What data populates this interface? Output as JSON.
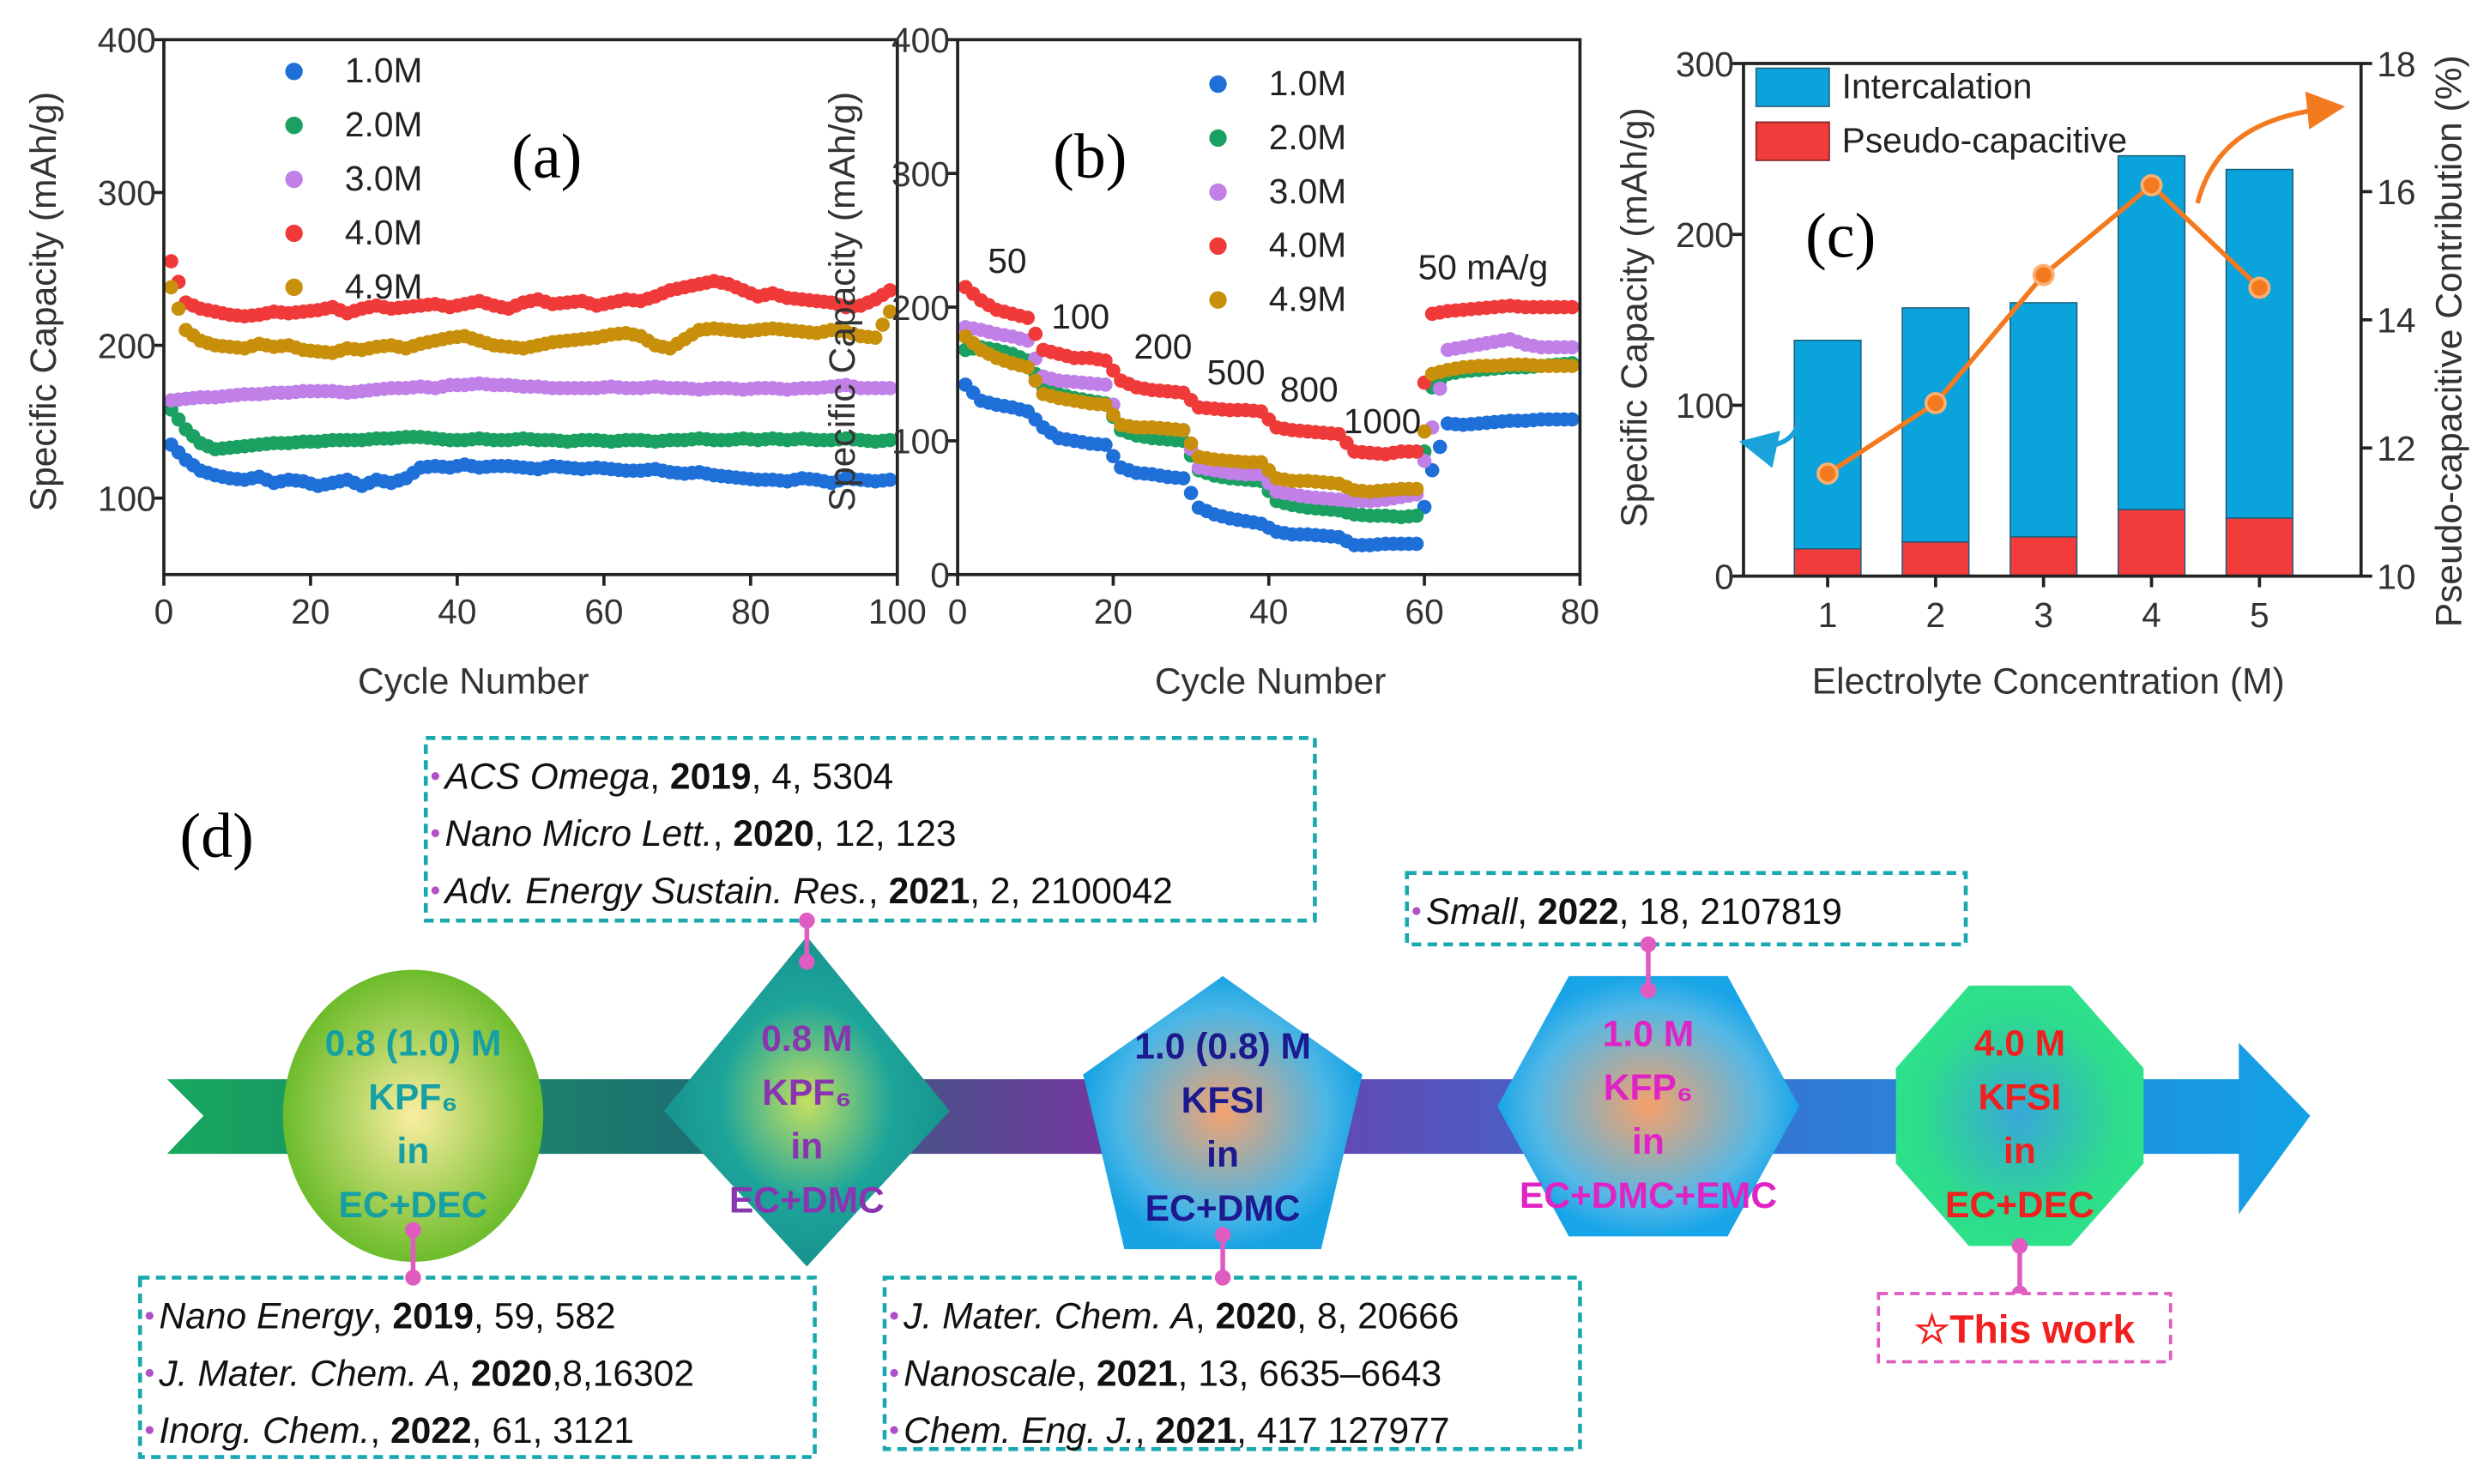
{
  "chart_data": [
    {
      "panel_label": "(a)",
      "type": "scatter",
      "xlabel": "Cycle Number",
      "ylabel": "Specific Capacity (mAh/g)",
      "xlim": [
        0,
        100
      ],
      "ylim": [
        50,
        400
      ],
      "xticks": [
        0,
        20,
        40,
        60,
        80,
        100
      ],
      "yticks": [
        100,
        200,
        300,
        400
      ],
      "grid": false,
      "legend": "top-left",
      "x": [
        1,
        3,
        5,
        7,
        9,
        11,
        13,
        15,
        17,
        19,
        21,
        23,
        25,
        27,
        29,
        31,
        33,
        35,
        37,
        39,
        41,
        43,
        45,
        47,
        49,
        51,
        53,
        55,
        57,
        59,
        61,
        63,
        65,
        67,
        69,
        71,
        73,
        75,
        77,
        79,
        81,
        83,
        85,
        87,
        89,
        91,
        93,
        95,
        97,
        99
      ],
      "series": [
        {
          "name": "1.0M",
          "color": "#1f6fd8",
          "values": [
            135,
            125,
            118,
            115,
            113,
            112,
            114,
            110,
            112,
            111,
            108,
            110,
            112,
            108,
            112,
            110,
            113,
            120,
            121,
            120,
            122,
            120,
            121,
            121,
            120,
            119,
            121,
            120,
            119,
            120,
            119,
            118,
            118,
            119,
            117,
            116,
            117,
            115,
            114,
            113,
            112,
            112,
            111,
            113,
            112,
            110,
            113,
            112,
            111,
            112
          ]
        },
        {
          "name": "2.0M",
          "color": "#1aa060",
          "values": [
            158,
            145,
            136,
            132,
            133,
            134,
            135,
            136,
            136,
            137,
            137,
            138,
            138,
            138,
            139,
            139,
            140,
            140,
            139,
            138,
            138,
            139,
            138,
            138,
            139,
            138,
            138,
            137,
            138,
            138,
            137,
            138,
            138,
            137,
            138,
            138,
            139,
            138,
            138,
            139,
            138,
            139,
            138,
            139,
            138,
            138,
            139,
            138,
            137,
            138
          ]
        },
        {
          "name": "3.0M",
          "color": "#c080e8",
          "values": [
            164,
            165,
            166,
            166,
            167,
            168,
            168,
            169,
            169,
            170,
            170,
            170,
            169,
            170,
            171,
            172,
            172,
            173,
            172,
            174,
            174,
            175,
            174,
            174,
            173,
            173,
            172,
            172,
            172,
            172,
            173,
            172,
            172,
            173,
            172,
            172,
            171,
            172,
            172,
            171,
            172,
            172,
            171,
            172,
            172,
            173,
            174,
            172,
            172,
            172
          ]
        },
        {
          "name": "4.0M",
          "color": "#f03a3a",
          "values": [
            255,
            228,
            224,
            222,
            220,
            219,
            220,
            222,
            221,
            222,
            223,
            225,
            221,
            224,
            226,
            224,
            225,
            226,
            227,
            225,
            227,
            229,
            226,
            224,
            228,
            230,
            227,
            228,
            229,
            226,
            228,
            230,
            229,
            232,
            236,
            238,
            240,
            242,
            240,
            236,
            232,
            234,
            231,
            230,
            229,
            228,
            225,
            226,
            230,
            236
          ]
        },
        {
          "name": "4.9M",
          "color": "#c8900a",
          "values": [
            238,
            210,
            203,
            200,
            199,
            198,
            201,
            199,
            200,
            197,
            196,
            195,
            198,
            197,
            199,
            200,
            198,
            201,
            203,
            205,
            206,
            203,
            200,
            199,
            198,
            200,
            202,
            203,
            204,
            205,
            207,
            208,
            206,
            200,
            198,
            204,
            210,
            211,
            210,
            209,
            210,
            211,
            210,
            209,
            208,
            210,
            209,
            206,
            205,
            222
          ]
        }
      ]
    },
    {
      "panel_label": "(b)",
      "type": "scatter",
      "xlabel": "Cycle Number",
      "ylabel": "Specific Capacity (mAh/g)",
      "xlim": [
        0,
        80
      ],
      "ylim": [
        0,
        400
      ],
      "xticks": [
        0,
        20,
        40,
        60,
        80
      ],
      "yticks": [
        0,
        100,
        200,
        300,
        400
      ],
      "grid": false,
      "legend": "top-right",
      "annotations": [
        "50",
        "100",
        "200",
        "500",
        "800",
        "1000",
        "50 mA/g"
      ],
      "x": [
        1,
        3,
        5,
        7,
        9,
        11,
        13,
        15,
        17,
        19,
        21,
        23,
        25,
        27,
        29,
        31,
        33,
        35,
        37,
        39,
        41,
        43,
        45,
        47,
        49,
        51,
        53,
        55,
        57,
        59,
        61,
        63,
        65,
        67,
        69,
        71,
        73,
        75,
        77,
        79
      ],
      "series": [
        {
          "name": "1.0M",
          "color": "#1f6fd8",
          "values": [
            142,
            130,
            127,
            125,
            122,
            110,
            102,
            100,
            98,
            97,
            80,
            76,
            75,
            73,
            72,
            50,
            45,
            42,
            40,
            38,
            32,
            30,
            30,
            29,
            28,
            22,
            22,
            23,
            23,
            23,
            78,
            113,
            112,
            113,
            114,
            115,
            115,
            116,
            116,
            116
          ]
        },
        {
          "name": "2.0M",
          "color": "#1aa060",
          "values": [
            168,
            170,
            168,
            165,
            160,
            140,
            135,
            132,
            130,
            128,
            108,
            104,
            102,
            101,
            100,
            78,
            74,
            72,
            71,
            70,
            55,
            52,
            50,
            49,
            48,
            45,
            44,
            44,
            43,
            44,
            140,
            150,
            152,
            153,
            154,
            155,
            155,
            156,
            157,
            158
          ]
        },
        {
          "name": "3.0M",
          "color": "#c080e8",
          "values": [
            185,
            183,
            180,
            178,
            175,
            148,
            145,
            144,
            143,
            142,
            112,
            110,
            110,
            109,
            108,
            80,
            78,
            76,
            75,
            75,
            62,
            60,
            58,
            57,
            56,
            55,
            55,
            56,
            58,
            60,
            110,
            168,
            170,
            172,
            174,
            176,
            172,
            170,
            170,
            170
          ]
        },
        {
          "name": "4.0M",
          "color": "#f03a3a",
          "values": [
            215,
            205,
            198,
            195,
            192,
            168,
            165,
            162,
            162,
            160,
            145,
            140,
            138,
            137,
            136,
            125,
            124,
            123,
            123,
            122,
            110,
            108,
            107,
            106,
            105,
            92,
            91,
            90,
            92,
            92,
            195,
            197,
            198,
            199,
            200,
            201,
            200,
            200,
            200,
            200
          ]
        },
        {
          "name": "4.9M",
          "color": "#c8900a",
          "values": [
            178,
            168,
            162,
            158,
            155,
            135,
            132,
            130,
            128,
            127,
            112,
            110,
            110,
            109,
            108,
            88,
            86,
            85,
            84,
            84,
            72,
            70,
            70,
            69,
            68,
            63,
            62,
            63,
            64,
            64,
            150,
            153,
            155,
            156,
            156,
            157,
            157,
            156,
            156,
            156
          ]
        }
      ]
    },
    {
      "panel_label": "(c)",
      "type": "bar",
      "stacked": true,
      "xlabel": "Electrolyte Concentration (M)",
      "ylabel": "Specific Capacity (mAh/g)",
      "y2label": "Pseudo-capacitive Contribution (%)",
      "categories": [
        "1",
        "2",
        "3",
        "4",
        "5"
      ],
      "ylim": [
        0,
        300
      ],
      "y2lim": [
        10,
        18
      ],
      "yticks": [
        0,
        100,
        200,
        300
      ],
      "y2ticks": [
        10,
        12,
        14,
        16,
        18
      ],
      "legend": "top-left",
      "series": [
        {
          "name": "Pseudo-capacitive",
          "color": "#f23c3c",
          "values": [
            16,
            20,
            23,
            39,
            34
          ]
        },
        {
          "name": "Intercalation",
          "color": "#0aa3db",
          "values": [
            122,
            137,
            137,
            207,
            204
          ]
        }
      ],
      "line": {
        "axis": "right",
        "color": "#f47a20",
        "values": [
          11.6,
          12.7,
          14.7,
          16.1,
          14.5
        ]
      }
    }
  ],
  "timeline": {
    "panel_label": "(d)",
    "nodes": [
      {
        "lines": [
          "0.8 (1.0) M",
          "KPF₆",
          "in",
          "EC+DEC"
        ],
        "text_color": "#17a0a4",
        "shape": "circle"
      },
      {
        "lines": [
          "0.8 M",
          "KPF₆",
          "in",
          "EC+DMC"
        ],
        "text_color": "#8a35b0",
        "shape": "diamond"
      },
      {
        "lines": [
          "1.0 (0.8) M",
          "KFSI",
          "in",
          "EC+DMC"
        ],
        "text_color": "#1c1a8e",
        "shape": "pentagon"
      },
      {
        "lines": [
          "1.0 M",
          "KFP₆",
          "in",
          "EC+DMC+EMC"
        ],
        "text_color": "#e023c4",
        "shape": "hexagon"
      },
      {
        "lines": [
          "4.0 M",
          "KFSI",
          "in",
          "EC+DEC"
        ],
        "text_color": "#f21f1f",
        "shape": "octagon"
      }
    ],
    "ref_boxes": [
      {
        "refs": [
          {
            "journal": "Nano Energy",
            "year": "2019",
            "rest": ", 59, 582"
          },
          {
            "journal": "J. Mater. Chem. A",
            "year": "2020",
            "rest": ",8,16302"
          },
          {
            "journal": "Inorg. Chem.",
            "year": "2022",
            "rest": ", 61, 3121"
          }
        ]
      },
      {
        "refs": [
          {
            "journal": "ACS Omega",
            "year": "2019",
            "rest": ", 4, 5304"
          },
          {
            "journal": "Nano Micro Lett.",
            "year": "2020",
            "rest": ", 12, 123"
          },
          {
            "journal": "Adv. Energy Sustain. Res.",
            "year": "2021",
            "rest": ", 2, 2100042"
          }
        ]
      },
      {
        "refs": [
          {
            "journal": "J. Mater. Chem. A",
            "year": "2020",
            "rest": ", 8, 20666"
          },
          {
            "journal": "Nanoscale",
            "year": "2021",
            "rest": ", 13, 6635–6643"
          },
          {
            "journal": "Chem. Eng. J.",
            "year": "2021",
            "rest": ", 417 127977"
          }
        ]
      },
      {
        "refs": [
          {
            "journal": "Small",
            "year": "2022",
            "rest": ", 18, 2107819"
          }
        ]
      }
    ],
    "this_work": "☆This work",
    "colors": {
      "box_border": "#1aa8b0",
      "connector": "#e05cc0",
      "this_work": "#f21f1f"
    }
  }
}
